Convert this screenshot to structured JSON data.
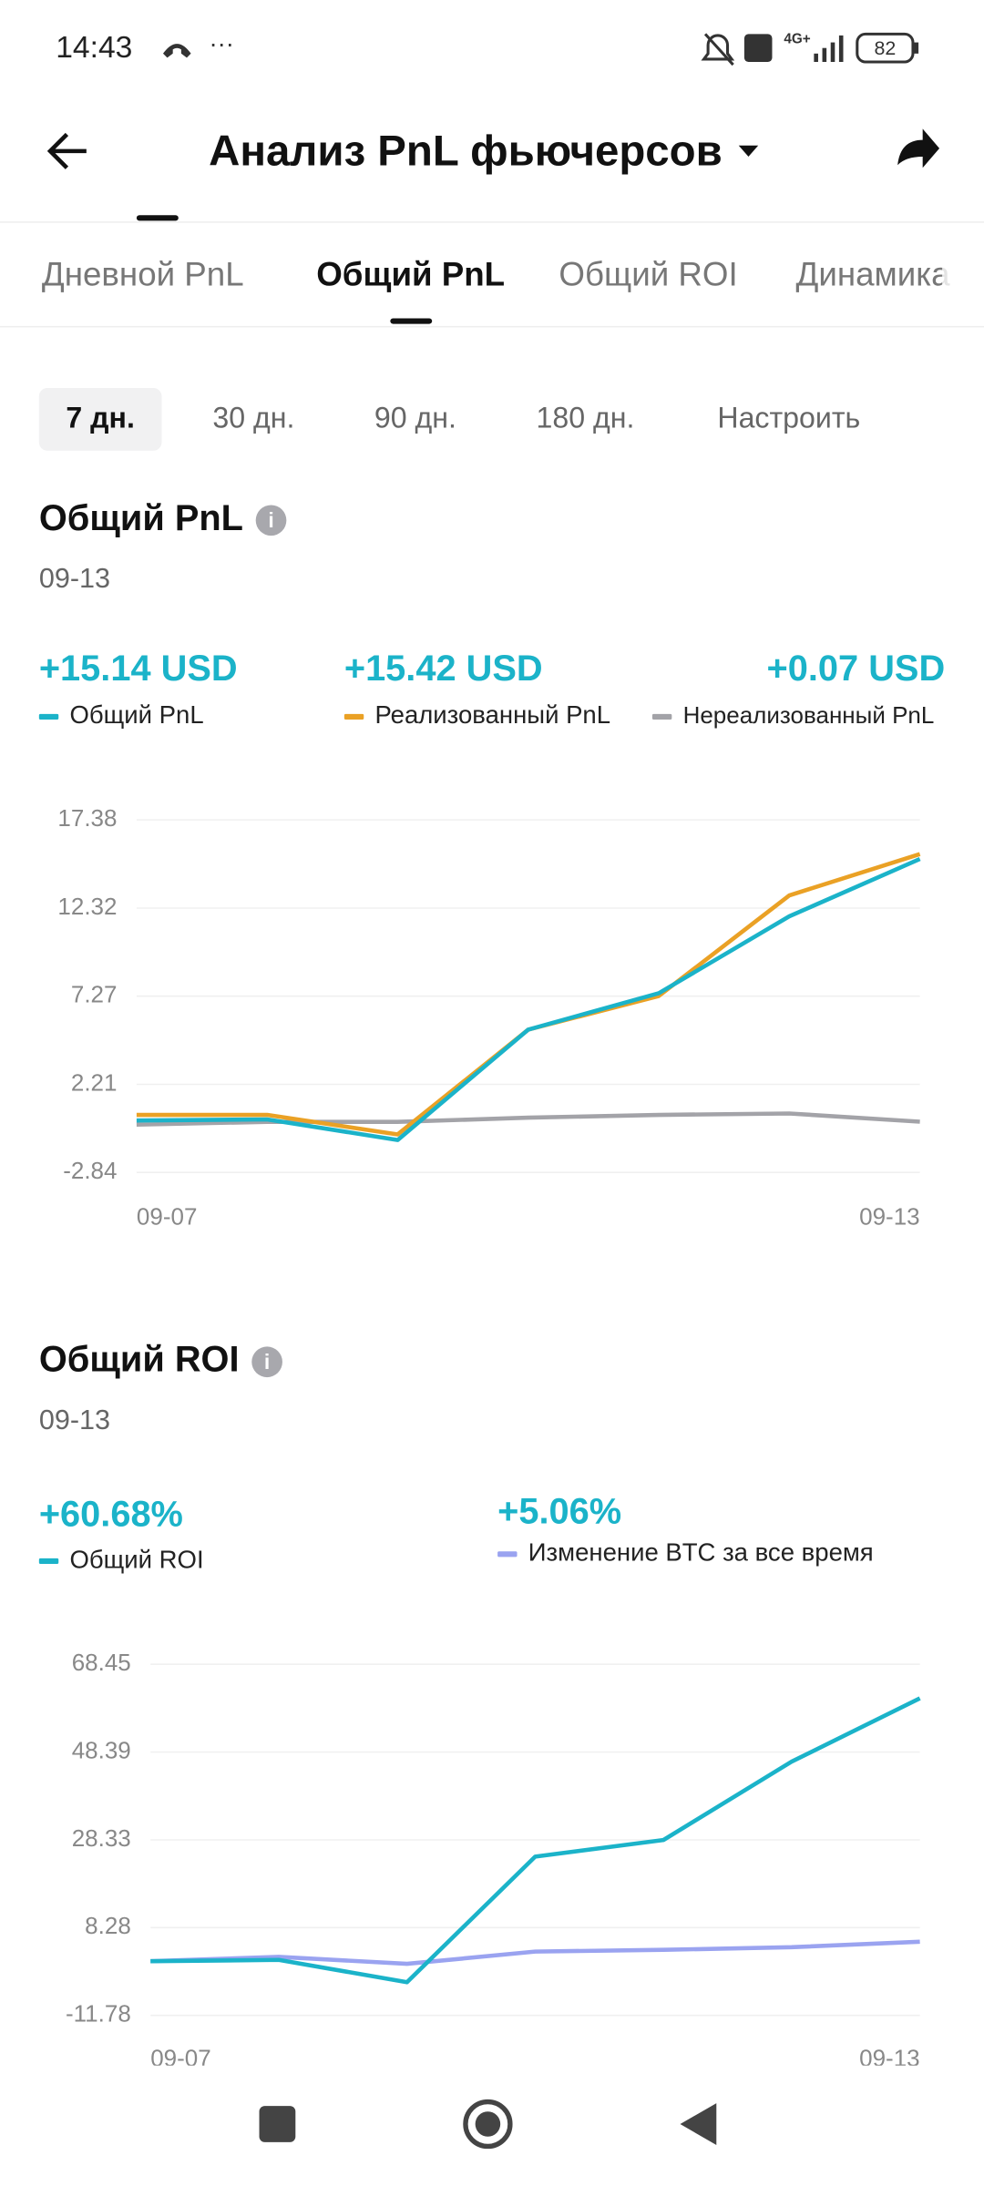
{
  "status_bar": {
    "time": "14:43",
    "battery": "82",
    "network": "4G+"
  },
  "header": {
    "title": "Анализ PnL фьючерсов"
  },
  "tabs": [
    "Дневной PnL",
    "Общий PnL",
    "Общий ROI",
    "Динамика"
  ],
  "periods": [
    "7 дн.",
    "30 дн.",
    "90 дн.",
    "180 дн.",
    "Настроить"
  ],
  "sections": [
    {
      "title": "Общий PnL",
      "date": "09-13",
      "summary": [
        "+15.14 USD",
        "+15.42 USD",
        "+0.07 USD"
      ]
    },
    {
      "title": "Общий ROI",
      "date": "09-13",
      "summary": [
        "+60.68%",
        "+5.06%"
      ]
    }
  ],
  "chart_data": [
    {
      "type": "line",
      "categories": [
        "09-07",
        null,
        null,
        null,
        null,
        null,
        "09-13"
      ],
      "ylim": [
        -2.84,
        17.38
      ],
      "yticks": [
        17.38,
        12.32,
        7.27,
        2.21,
        -2.84
      ],
      "grid": true,
      "series": [
        {
          "name": "Общий PnL",
          "color": "#1bb3c9",
          "values": [
            0.14,
            0.2,
            -0.98,
            5.35,
            7.44,
            11.85,
            15.14
          ]
        },
        {
          "name": "Реализованный PnL",
          "color": "#eaa125",
          "values": [
            0.46,
            0.46,
            -0.66,
            5.35,
            7.28,
            13.05,
            15.42
          ]
        },
        {
          "name": "Нереализованный PnL",
          "color": "#a3a3a8",
          "values": [
            -0.1,
            0.06,
            0.06,
            0.3,
            0.46,
            0.54,
            0.07
          ]
        }
      ]
    },
    {
      "type": "line",
      "categories": [
        "09-07",
        null,
        null,
        null,
        null,
        null,
        "09-13"
      ],
      "ylim": [
        -11.78,
        68.45
      ],
      "yticks": [
        68.45,
        48.39,
        28.33,
        8.28,
        -11.78
      ],
      "grid": true,
      "series": [
        {
          "name": "Общий ROI",
          "color": "#1bb3c9",
          "values": [
            0.6,
            0.9,
            -4.2,
            24.5,
            28.3,
            46.2,
            60.68
          ]
        },
        {
          "name": "Изменение BTC за все время",
          "color": "#9aa3f0",
          "values": [
            0.6,
            1.6,
            0.0,
            2.8,
            3.2,
            3.8,
            5.06
          ]
        }
      ]
    }
  ]
}
